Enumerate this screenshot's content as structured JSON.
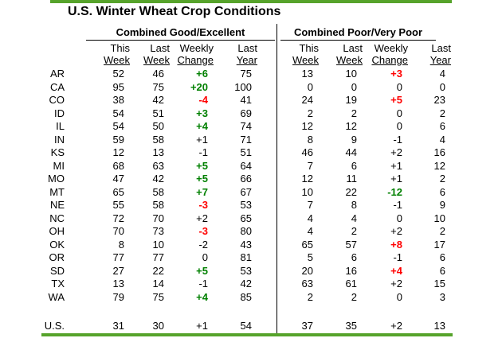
{
  "colors": {
    "rule_green": "#56a32b",
    "change_good": "#008000",
    "change_bad": "#ff0000",
    "text": "#000000",
    "background": "#ffffff"
  },
  "chart_data": {
    "type": "table",
    "title": "U.S. Winter Wheat Crop Conditions",
    "section_left": "Combined Good/Excellent",
    "section_right": "Combined Poor/Very Poor",
    "column_header_line1": [
      "This",
      "Last",
      "Weekly",
      "Last"
    ],
    "column_header_line2": [
      "Week",
      "Week",
      "Change",
      "Year"
    ],
    "columns": [
      "This Week",
      "Last Week",
      "Weekly Change",
      "Last Year"
    ],
    "rows": [
      {
        "state": "AR",
        "ge": [
          "52",
          "46",
          "+6",
          "75"
        ],
        "ge_change": "good",
        "pvp": [
          "13",
          "10",
          "+3",
          "4"
        ],
        "pvp_change": "bad"
      },
      {
        "state": "CA",
        "ge": [
          "95",
          "75",
          "+20",
          "100"
        ],
        "ge_change": "good",
        "pvp": [
          "0",
          "0",
          "0",
          "0"
        ],
        "pvp_change": "none"
      },
      {
        "state": "CO",
        "ge": [
          "38",
          "42",
          "-4",
          "41"
        ],
        "ge_change": "bad",
        "pvp": [
          "24",
          "19",
          "+5",
          "23"
        ],
        "pvp_change": "bad"
      },
      {
        "state": "ID",
        "ge": [
          "54",
          "51",
          "+3",
          "69"
        ],
        "ge_change": "good",
        "pvp": [
          "2",
          "2",
          "0",
          "2"
        ],
        "pvp_change": "none"
      },
      {
        "state": "IL",
        "ge": [
          "54",
          "50",
          "+4",
          "74"
        ],
        "ge_change": "good",
        "pvp": [
          "12",
          "12",
          "0",
          "6"
        ],
        "pvp_change": "none"
      },
      {
        "state": "IN",
        "ge": [
          "59",
          "58",
          "+1",
          "71"
        ],
        "ge_change": "none",
        "pvp": [
          "8",
          "9",
          "-1",
          "4"
        ],
        "pvp_change": "none"
      },
      {
        "state": "KS",
        "ge": [
          "12",
          "13",
          "-1",
          "51"
        ],
        "ge_change": "none",
        "pvp": [
          "46",
          "44",
          "+2",
          "16"
        ],
        "pvp_change": "none"
      },
      {
        "state": "MI",
        "ge": [
          "68",
          "63",
          "+5",
          "64"
        ],
        "ge_change": "good",
        "pvp": [
          "7",
          "6",
          "+1",
          "12"
        ],
        "pvp_change": "none"
      },
      {
        "state": "MO",
        "ge": [
          "47",
          "42",
          "+5",
          "66"
        ],
        "ge_change": "good",
        "pvp": [
          "12",
          "11",
          "+1",
          "2"
        ],
        "pvp_change": "none"
      },
      {
        "state": "MT",
        "ge": [
          "65",
          "58",
          "+7",
          "67"
        ],
        "ge_change": "good",
        "pvp": [
          "10",
          "22",
          "-12",
          "6"
        ],
        "pvp_change": "good"
      },
      {
        "state": "NE",
        "ge": [
          "55",
          "58",
          "-3",
          "53"
        ],
        "ge_change": "bad",
        "pvp": [
          "7",
          "8",
          "-1",
          "9"
        ],
        "pvp_change": "none"
      },
      {
        "state": "NC",
        "ge": [
          "72",
          "70",
          "+2",
          "65"
        ],
        "ge_change": "none",
        "pvp": [
          "4",
          "4",
          "0",
          "10"
        ],
        "pvp_change": "none"
      },
      {
        "state": "OH",
        "ge": [
          "70",
          "73",
          "-3",
          "80"
        ],
        "ge_change": "bad",
        "pvp": [
          "4",
          "2",
          "+2",
          "2"
        ],
        "pvp_change": "none"
      },
      {
        "state": "OK",
        "ge": [
          "8",
          "10",
          "-2",
          "43"
        ],
        "ge_change": "none",
        "pvp": [
          "65",
          "57",
          "+8",
          "17"
        ],
        "pvp_change": "bad"
      },
      {
        "state": "OR",
        "ge": [
          "77",
          "77",
          "0",
          "81"
        ],
        "ge_change": "none",
        "pvp": [
          "5",
          "6",
          "-1",
          "6"
        ],
        "pvp_change": "none"
      },
      {
        "state": "SD",
        "ge": [
          "27",
          "22",
          "+5",
          "53"
        ],
        "ge_change": "good",
        "pvp": [
          "20",
          "16",
          "+4",
          "6"
        ],
        "pvp_change": "bad"
      },
      {
        "state": "TX",
        "ge": [
          "13",
          "14",
          "-1",
          "42"
        ],
        "ge_change": "none",
        "pvp": [
          "63",
          "61",
          "+2",
          "15"
        ],
        "pvp_change": "none"
      },
      {
        "state": "WA",
        "ge": [
          "79",
          "75",
          "+4",
          "85"
        ],
        "ge_change": "good",
        "pvp": [
          "2",
          "2",
          "0",
          "3"
        ],
        "pvp_change": "none"
      }
    ],
    "total_label": "U.S.",
    "total": {
      "ge": [
        "31",
        "30",
        "+1",
        "54"
      ],
      "ge_change": "none",
      "pvp": [
        "37",
        "35",
        "+2",
        "13"
      ],
      "pvp_change": "none"
    }
  }
}
